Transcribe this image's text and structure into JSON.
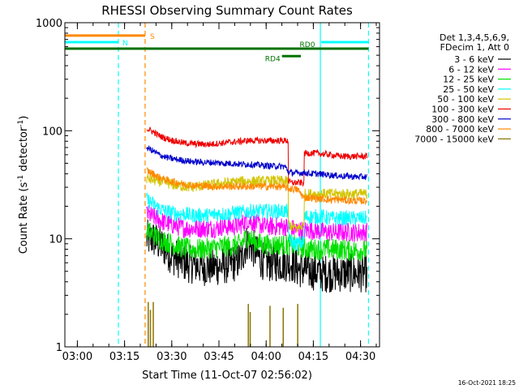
{
  "chart_data": {
    "type": "line",
    "title": "RHESSI Observing Summary Count Rates",
    "xlabel": "Start Time (11-Oct-07 02:56:02)",
    "ylabel_main": "Count Rate (s",
    "ylabel_sup1": "-1",
    "ylabel_mid": " detector",
    "ylabel_sup2": "-1",
    "ylabel_end": ")",
    "yscale": "log",
    "x_unit": "minutes since 02:56:02",
    "xlim": [
      0,
      100
    ],
    "ylim": [
      1,
      1000
    ],
    "x_ticks": [
      {
        "value": 3.97,
        "label": "03:00"
      },
      {
        "value": 18.97,
        "label": "03:15"
      },
      {
        "value": 33.97,
        "label": "03:30"
      },
      {
        "value": 48.97,
        "label": "03:45"
      },
      {
        "value": 63.97,
        "label": "04:00"
      },
      {
        "value": 78.97,
        "label": "04:15"
      },
      {
        "value": 93.97,
        "label": "04:30"
      }
    ],
    "y_ticks": [
      {
        "value": 1,
        "label": "1"
      },
      {
        "value": 10,
        "label": "10"
      },
      {
        "value": 100,
        "label": "100"
      },
      {
        "value": 1000,
        "label": "1000"
      }
    ],
    "legend": {
      "position": "top-right",
      "header": [
        "Det 1,3,4,5,6,9,",
        "FDecim 1, Att 0"
      ],
      "entries": [
        {
          "label": "3 - 6 keV",
          "color": "#000000"
        },
        {
          "label": "6 - 12 keV",
          "color": "#ff00ff"
        },
        {
          "label": "12 - 25 keV",
          "color": "#00e000"
        },
        {
          "label": "25 - 50 keV",
          "color": "#00ffff"
        },
        {
          "label": "50 - 100 keV",
          "color": "#d4c400"
        },
        {
          "label": "100 - 300 keV",
          "color": "#ee0000"
        },
        {
          "label": "300 - 800 keV",
          "color": "#0000cc"
        },
        {
          "label": "800 - 7000 keV",
          "color": "#ff8800"
        },
        {
          "label": "7000 - 15000 keV",
          "color": "#8b7300"
        }
      ]
    },
    "flags": [
      {
        "label": "S",
        "x_start": 0,
        "x_end": 25.5,
        "y": 760,
        "color": "#ff8800"
      },
      {
        "label": "N",
        "x_start": 0,
        "x_end": 17.0,
        "y": 660,
        "color": "#00ffff"
      },
      {
        "label": "",
        "x_start": 81.5,
        "x_end": 96.5,
        "y": 660,
        "color": "#00ffff"
      },
      {
        "label": "RD0",
        "x_start": 0,
        "x_end": 96.5,
        "y": 575,
        "color": "#007000"
      },
      {
        "label": "RD4",
        "x_start": 69.0,
        "x_end": 75.0,
        "y": 490,
        "color": "#007000"
      }
    ],
    "vlines": [
      {
        "x": 17.0,
        "color": "#00ffff",
        "style": "dashed"
      },
      {
        "x": 25.5,
        "color": "#ff8800",
        "style": "dashed"
      },
      {
        "x": 81.2,
        "color": "#00ffff",
        "style": "solid"
      },
      {
        "x": 96.5,
        "color": "#00ffff",
        "style": "dashed"
      }
    ],
    "series": [
      {
        "name": "3 - 6 keV",
        "color": "#000000",
        "x": [
          26,
          28,
          30,
          32,
          34,
          36,
          38,
          40,
          42,
          44,
          46,
          48,
          50,
          52,
          54,
          56,
          58,
          60,
          62,
          64,
          66,
          68,
          70,
          72,
          74,
          76,
          78,
          80,
          82,
          84,
          86,
          88,
          90,
          92,
          94,
          96
        ],
        "y": [
          10,
          10,
          9,
          8,
          7,
          6.5,
          6,
          5.8,
          5.7,
          5.5,
          5.5,
          5.5,
          5.6,
          5.8,
          6,
          6.5,
          9.5,
          8,
          6.5,
          6,
          6,
          6,
          6,
          6,
          5.3,
          5.2,
          5,
          5,
          4.8,
          4.8,
          4.8,
          4.8,
          4.8,
          4.8,
          4.8,
          4.8
        ],
        "noise": 0.18
      },
      {
        "name": "6 - 12 keV",
        "color": "#ff00ff",
        "x": [
          26,
          28,
          30,
          32,
          34,
          36,
          38,
          40,
          42,
          44,
          46,
          48,
          50,
          52,
          54,
          56,
          58,
          60,
          62,
          64,
          66,
          68,
          70,
          72,
          74,
          76,
          78,
          80,
          82,
          84,
          86,
          88,
          90,
          92,
          94,
          96
        ],
        "y": [
          17,
          16,
          15,
          14,
          13.5,
          13,
          12.5,
          12.5,
          12.5,
          12.5,
          12.5,
          12.5,
          13,
          13,
          13,
          13.5,
          15,
          14,
          13.5,
          13,
          13,
          13,
          13,
          12.5,
          12,
          12,
          12,
          12,
          11.5,
          11.5,
          11.5,
          11.5,
          11.5,
          11.5,
          11.5,
          11.5
        ],
        "noise": 0.09
      },
      {
        "name": "12 - 25 keV",
        "color": "#00e000",
        "x": [
          26,
          28,
          30,
          32,
          34,
          36,
          38,
          40,
          42,
          44,
          46,
          48,
          50,
          52,
          54,
          56,
          58,
          60,
          62,
          64,
          66,
          68,
          70,
          72,
          74,
          76,
          78,
          80,
          82,
          84,
          86,
          88,
          90,
          92,
          94,
          96
        ],
        "y": [
          12,
          11,
          10,
          9.5,
          9,
          8.5,
          8.2,
          8,
          8,
          8,
          8.2,
          8.3,
          8.5,
          8.5,
          8.6,
          9,
          10.5,
          9.5,
          9,
          8.8,
          8.8,
          8.8,
          8.8,
          8.8,
          8.4,
          8.2,
          8,
          8,
          8,
          8,
          8,
          8,
          7.8,
          7.8,
          7.8,
          7.8
        ],
        "noise": 0.1
      },
      {
        "name": "25 - 50 keV",
        "color": "#00ffff",
        "x": [
          26,
          28,
          30,
          32,
          34,
          36,
          38,
          40,
          42,
          44,
          46,
          48,
          50,
          52,
          54,
          56,
          58,
          60,
          62,
          64,
          66,
          68,
          70,
          71,
          72,
          73,
          74,
          75,
          76,
          78,
          80,
          82,
          84,
          86,
          88,
          90,
          92,
          94,
          96
        ],
        "y": [
          23,
          21,
          19,
          18,
          17.5,
          17,
          17,
          16.5,
          16.5,
          16.5,
          16.5,
          17,
          17,
          17,
          17.5,
          17.5,
          18,
          18,
          18,
          18,
          18,
          18,
          18,
          10,
          9.5,
          9,
          9,
          9.2,
          16,
          16,
          16,
          16,
          15.5,
          15.5,
          15.5,
          15.5,
          15.5,
          15.5,
          15.5
        ],
        "noise": 0.07
      },
      {
        "name": "50 - 100 keV",
        "color": "#d4c400",
        "x": [
          26,
          28,
          30,
          32,
          34,
          36,
          38,
          40,
          42,
          44,
          46,
          48,
          50,
          52,
          54,
          56,
          58,
          60,
          62,
          64,
          66,
          68,
          70,
          71,
          72,
          73,
          74,
          75,
          76,
          78,
          80,
          82,
          84,
          86,
          88,
          90,
          92,
          94,
          96
        ],
        "y": [
          36,
          35,
          34,
          33,
          32,
          31,
          30.5,
          30,
          30.5,
          31,
          31.5,
          32,
          32.5,
          33,
          33.5,
          34,
          34,
          34,
          34,
          34,
          34.5,
          34.5,
          34,
          14,
          13,
          12.5,
          12.5,
          13,
          26,
          26,
          26,
          26,
          26,
          26,
          26,
          26,
          26,
          26,
          26
        ],
        "noise": 0.05
      },
      {
        "name": "100 - 300 keV",
        "color": "#ee0000",
        "x": [
          26,
          28,
          30,
          32,
          34,
          36,
          38,
          40,
          42,
          44,
          46,
          48,
          50,
          52,
          54,
          56,
          58,
          60,
          62,
          64,
          66,
          68,
          70,
          71,
          72,
          74,
          76,
          78,
          80,
          82,
          84,
          86,
          88,
          90,
          92,
          94,
          96
        ],
        "y": [
          105,
          98,
          90,
          85,
          82,
          79,
          77,
          76,
          75.5,
          75,
          75,
          76,
          77,
          78,
          79,
          80,
          81,
          81,
          81,
          81,
          81,
          81,
          81,
          34,
          33,
          33,
          62,
          62,
          62,
          61,
          60,
          59,
          58,
          58,
          58,
          58,
          58
        ],
        "noise": 0.03
      },
      {
        "name": "300 - 800 keV",
        "color": "#0000cc",
        "x": [
          26,
          28,
          30,
          32,
          34,
          36,
          38,
          40,
          42,
          44,
          46,
          48,
          50,
          52,
          54,
          56,
          58,
          60,
          62,
          64,
          66,
          68,
          70,
          71,
          72,
          74,
          76,
          78,
          80,
          82,
          84,
          86,
          88,
          90,
          92,
          94,
          96
        ],
        "y": [
          70,
          65,
          60,
          57,
          55,
          54,
          53,
          52,
          51.5,
          51,
          51,
          50.5,
          50,
          50,
          49.5,
          49,
          49,
          48.5,
          48,
          47.5,
          47,
          47,
          46.5,
          42,
          41,
          40.5,
          41,
          40,
          40,
          39.5,
          39,
          38.5,
          38,
          38,
          37.5,
          37.5,
          37.5
        ],
        "noise": 0.03
      },
      {
        "name": "800 - 7000 keV",
        "color": "#ff8800",
        "x": [
          26,
          28,
          30,
          32,
          34,
          36,
          38,
          40,
          42,
          44,
          46,
          48,
          50,
          52,
          54,
          56,
          58,
          60,
          62,
          64,
          66,
          68,
          70,
          71,
          72,
          74,
          76,
          78,
          80,
          82,
          84,
          86,
          88,
          90,
          92,
          94,
          96
        ],
        "y": [
          43,
          40,
          37,
          35,
          34,
          33,
          32,
          31.5,
          31,
          31,
          30.5,
          30.5,
          30.5,
          30.5,
          30.5,
          30.5,
          30.5,
          30.5,
          30.5,
          30.5,
          30.5,
          30.5,
          30,
          29,
          29,
          28.5,
          24,
          24,
          23.5,
          23.5,
          23,
          23,
          23,
          22.5,
          22.5,
          22.5,
          22.5
        ],
        "noise": 0.035
      },
      {
        "name": "7000 - 15000 keV",
        "color": "#8b7300",
        "type": "spikes",
        "x": [
          26.5,
          27.2,
          28.1,
          58.3,
          58.9,
          65.2,
          69.4,
          74.0
        ],
        "y": [
          2.6,
          2.2,
          2.6,
          2.5,
          2.1,
          2.4,
          2.3,
          2.5
        ]
      }
    ],
    "timestamp": "16-Oct-2021 18:25"
  }
}
